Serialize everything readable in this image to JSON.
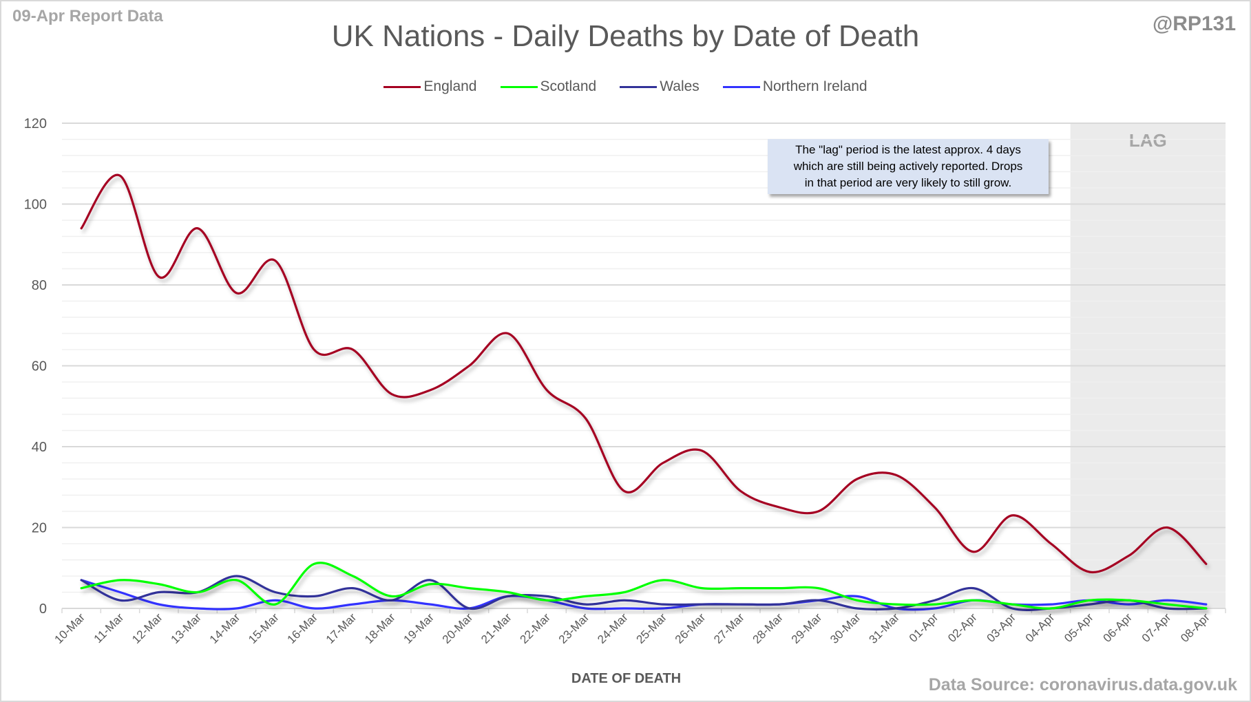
{
  "header": {
    "report_label": "09-Apr Report Data",
    "handle": "@RP131"
  },
  "note": {
    "lines": [
      "The \"lag\" period is the latest approx. 4 days",
      "which are still being actively reported. Drops",
      "in that period are very likely to still grow."
    ]
  },
  "footer": {
    "source": "Data Source: coronavirus.data.gov.uk"
  },
  "chart_data": {
    "type": "line",
    "title": "UK Nations - Daily Deaths by Date of Death",
    "xlabel": "DATE OF DEATH",
    "ylabel": "",
    "ylim": [
      0,
      120
    ],
    "yticks": [
      0,
      20,
      40,
      60,
      80,
      100,
      120
    ],
    "minor_grid_step": 4,
    "grid": true,
    "legend": "top-center",
    "smoothed": true,
    "lag_region": {
      "label": "LAG",
      "from": "05-Apr",
      "to": "08-Apr",
      "color": "#ebebeb"
    },
    "categories": [
      "10-Mar",
      "11-Mar",
      "12-Mar",
      "13-Mar",
      "14-Mar",
      "15-Mar",
      "16-Mar",
      "17-Mar",
      "18-Mar",
      "19-Mar",
      "20-Mar",
      "21-Mar",
      "22-Mar",
      "23-Mar",
      "24-Mar",
      "25-Mar",
      "26-Mar",
      "27-Mar",
      "28-Mar",
      "29-Mar",
      "30-Mar",
      "31-Mar",
      "01-Apr",
      "02-Apr",
      "03-Apr",
      "04-Apr",
      "05-Apr",
      "06-Apr",
      "07-Apr",
      "08-Apr"
    ],
    "series": [
      {
        "name": "England",
        "color": "#a50021",
        "values": [
          94,
          107,
          82,
          94,
          78,
          86,
          64,
          64,
          53,
          54,
          60,
          68,
          54,
          47,
          29,
          36,
          39,
          29,
          25,
          24,
          32,
          33,
          25,
          14,
          23,
          16,
          9,
          13,
          20,
          11
        ]
      },
      {
        "name": "Scotland",
        "color": "#00ff00",
        "values": [
          5,
          7,
          6,
          4,
          7,
          1,
          11,
          8,
          3,
          6,
          5,
          4,
          2,
          3,
          4,
          7,
          5,
          5,
          5,
          5,
          2,
          1,
          1,
          2,
          1,
          0,
          2,
          2,
          1,
          0
        ]
      },
      {
        "name": "Wales",
        "color": "#333399",
        "values": [
          7,
          2,
          4,
          4,
          8,
          4,
          3,
          5,
          2,
          7,
          0,
          3,
          3,
          1,
          2,
          1,
          1,
          1,
          1,
          2,
          0,
          0,
          2,
          5,
          0,
          0,
          1,
          2,
          0,
          0
        ]
      },
      {
        "name": "Northern Ireland",
        "color": "#3333ff",
        "values": [
          7,
          4,
          1,
          0,
          0,
          2,
          0,
          1,
          2,
          1,
          0,
          3,
          2,
          0,
          0,
          0,
          1,
          1,
          1,
          2,
          3,
          0,
          0,
          2,
          1,
          1,
          2,
          1,
          2,
          1
        ]
      }
    ]
  }
}
